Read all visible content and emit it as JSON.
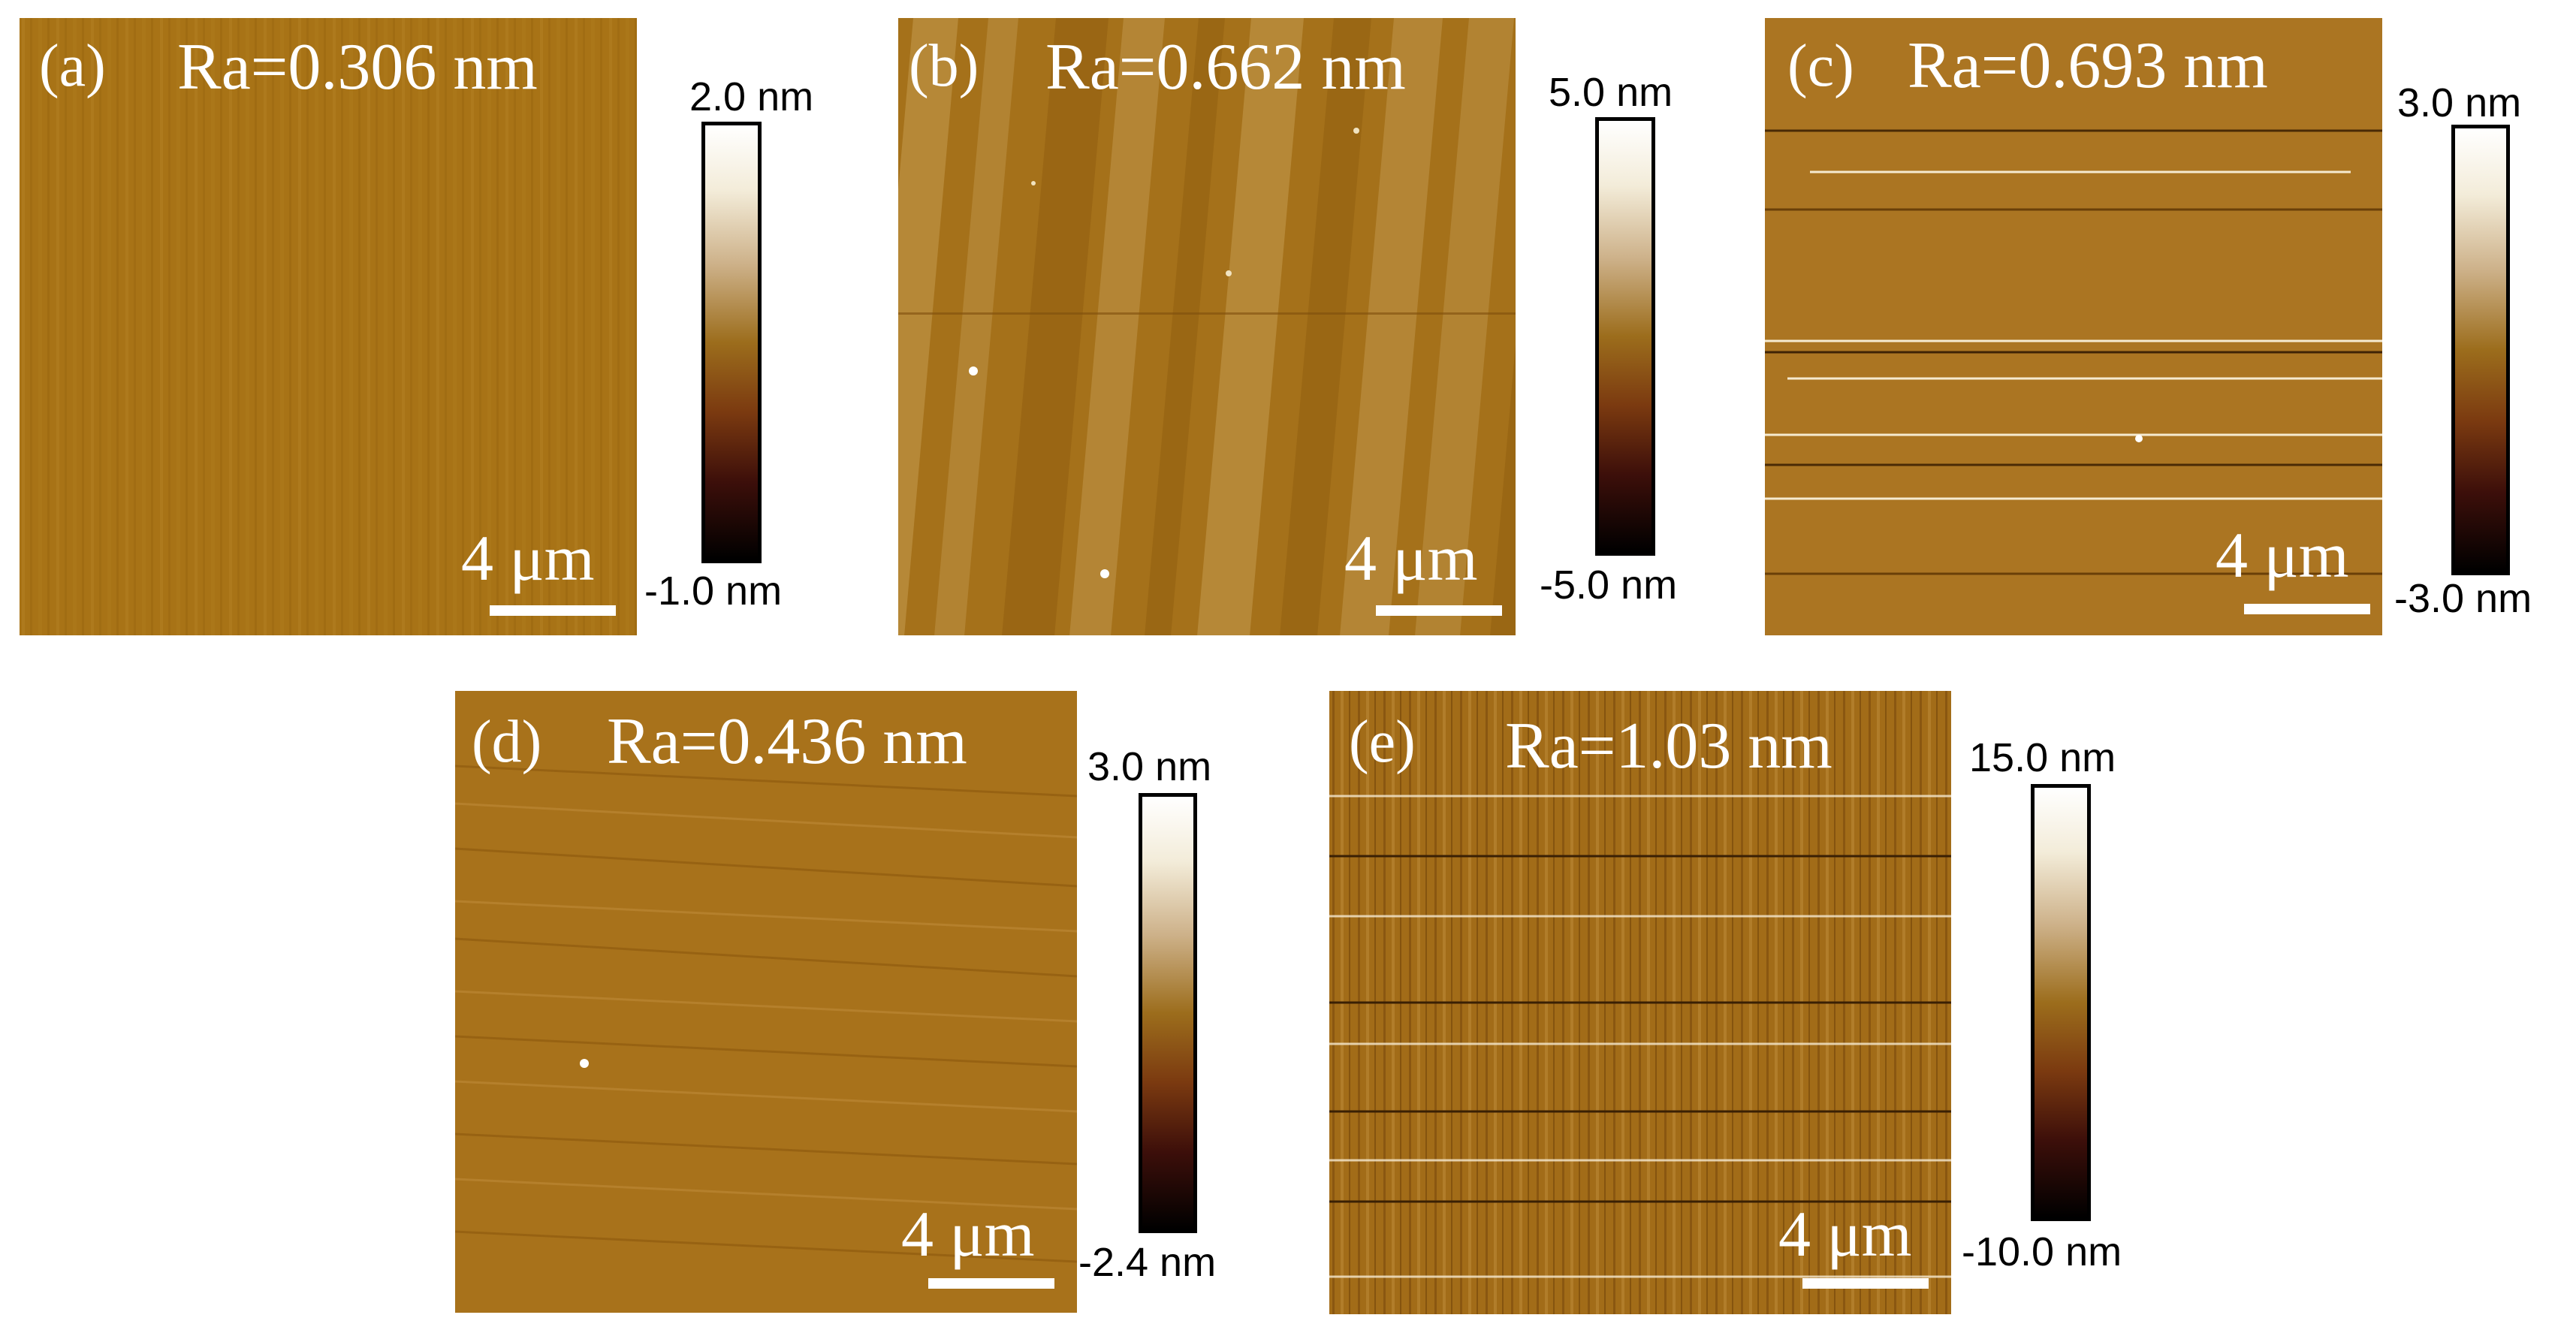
{
  "panels": [
    {
      "id": "a",
      "label": "(a)",
      "ra": "Ra=0.306 nm",
      "scale_bar": "4 μm",
      "cbar_max": "2.0 nm",
      "cbar_min": "-1.0 nm"
    },
    {
      "id": "b",
      "label": "(b)",
      "ra": "Ra=0.662 nm",
      "scale_bar": "4 μm",
      "cbar_max": "5.0 nm",
      "cbar_min": "-5.0 nm"
    },
    {
      "id": "c",
      "label": "(c)",
      "ra": "Ra=0.693 nm",
      "scale_bar": "4 μm",
      "cbar_max": "3.0 nm",
      "cbar_min": "-3.0 nm"
    },
    {
      "id": "d",
      "label": "(d)",
      "ra": "Ra=0.436 nm",
      "scale_bar": "4 μm",
      "cbar_max": "3.0 nm",
      "cbar_min": "-2.4 nm"
    },
    {
      "id": "e",
      "label": "(e)",
      "ra": "Ra=1.03 nm",
      "scale_bar": "4 μm",
      "cbar_max": "15.0 nm",
      "cbar_min": "-10.0 nm"
    }
  ],
  "colors": {
    "afm_base": "#a87316",
    "colorbar_top": "#ffffff",
    "colorbar_mid": "#9c6d1c",
    "colorbar_bottom": "#000000",
    "annotation_text": "#ffffff"
  }
}
